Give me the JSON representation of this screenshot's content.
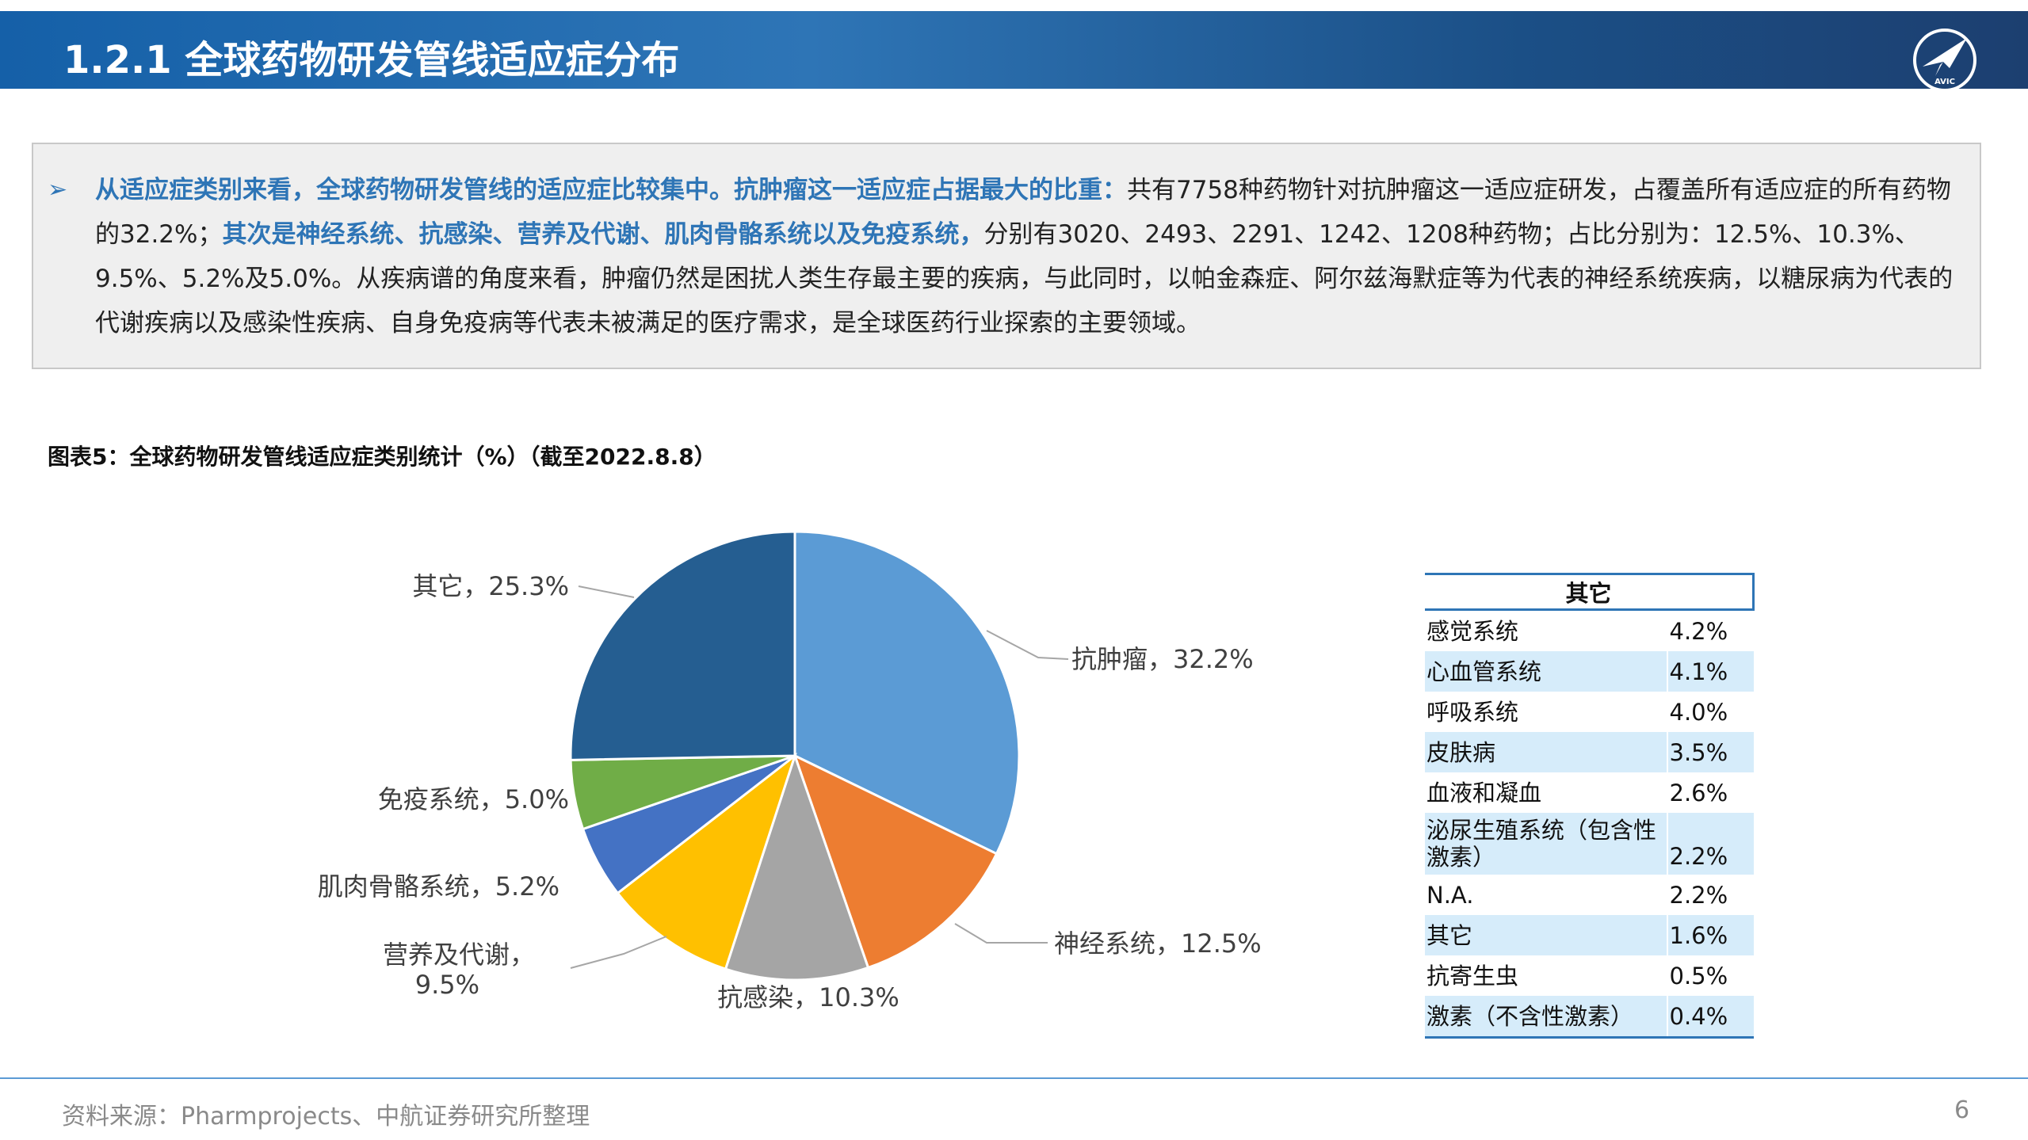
{
  "header": {
    "title": "1.2.1 全球药物研发管线适应症分布",
    "logo_text": "AVIC"
  },
  "summary": {
    "bullet": "➢",
    "segments": [
      {
        "text": "从适应症类别来看，全球药物研发管线的适应症比较集中。抗肿瘤这一适应症占据最大的比重：",
        "highlight": true
      },
      {
        "text": "共有7758种药物针对抗肿瘤这一适应症研发，占覆盖所有适应症的所有药物的32.2%；",
        "highlight": false
      },
      {
        "text": "其次是神经系统、抗感染、营养及代谢、肌肉骨骼系统以及免疫系统，",
        "highlight": true
      },
      {
        "text": "分别有3020、2493、2291、1242、1208种药物；占比分别为：12.5%、10.3%、9.5%、5.2%及5.0%。从疾病谱的角度来看，肿瘤仍然是困扰人类生存最主要的疾病，与此同时，以帕金森症、阿尔兹海默症等为代表的神经系统疾病，以糖尿病为代表的代谢疾病以及感染性疾病、自身免疫病等代表未被满足的医疗需求，是全球医药行业探索的主要领域。",
        "highlight": false
      }
    ]
  },
  "caption": "图表5：全球药物研发管线适应症类别统计（%）（截至2022.8.8）",
  "chart_data": {
    "type": "pie",
    "title": "图表5：全球药物研发管线适应症类别统计（%）（截至2022.8.8）",
    "slices": [
      {
        "label": "抗肿瘤",
        "value": 32.2,
        "display": "抗肿瘤，32.2%",
        "color": "#5b9bd5"
      },
      {
        "label": "神经系统",
        "value": 12.5,
        "display": "神经系统，12.5%",
        "color": "#ed7d31"
      },
      {
        "label": "抗感染",
        "value": 10.3,
        "display": "抗感染，10.3%",
        "color": "#a5a5a5"
      },
      {
        "label": "营养及代谢",
        "value": 9.5,
        "display": "营养及代谢，\n9.5%",
        "color": "#ffc000"
      },
      {
        "label": "肌肉骨骼系统",
        "value": 5.2,
        "display": "肌肉骨骼系统，5.2%",
        "color": "#4472c4"
      },
      {
        "label": "免疫系统",
        "value": 5.0,
        "display": "免疫系统，5.0%",
        "color": "#70ad47"
      },
      {
        "label": "其它",
        "value": 25.3,
        "display": "其它，25.3%",
        "color": "#255e91"
      }
    ],
    "start_angle_deg": 0,
    "direction": "clockwise",
    "legend": "none"
  },
  "other_table": {
    "header": "其它",
    "rows": [
      {
        "name": "感觉系统",
        "value": "4.2%"
      },
      {
        "name": "心血管系统",
        "value": "4.1%"
      },
      {
        "name": "呼吸系统",
        "value": "4.0%"
      },
      {
        "name": "皮肤病",
        "value": "3.5%"
      },
      {
        "name": "血液和凝血",
        "value": "2.6%"
      },
      {
        "name": "泌尿生殖系统（包含性激素）",
        "value": "2.2%"
      },
      {
        "name": "N.A.",
        "value": "2.2%"
      },
      {
        "name": "其它",
        "value": "1.6%"
      },
      {
        "name": "抗寄生虫",
        "value": "0.5%"
      },
      {
        "name": "激素（不含性激素）",
        "value": "0.4%"
      }
    ]
  },
  "footer": {
    "source": "资料来源：Pharmprojects、中航证券研究所整理",
    "page": "6"
  },
  "colors": {
    "header_blue": "#1f6fb5",
    "highlight": "#2e75b6",
    "table_alt": "#d6ecfa"
  }
}
